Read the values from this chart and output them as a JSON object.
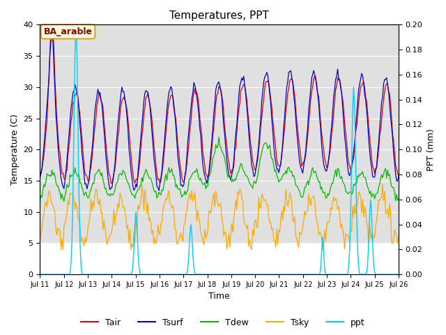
{
  "title": "Temperatures, PPT",
  "xlabel": "Time",
  "ylabel_left": "Temperature (C)",
  "ylabel_right": "PPT (mm)",
  "annotation": "BA_arable",
  "ylim_left": [
    0,
    40
  ],
  "ylim_right": [
    0,
    0.2
  ],
  "yticks_left": [
    0,
    5,
    10,
    15,
    20,
    25,
    30,
    35,
    40
  ],
  "yticks_right": [
    0.0,
    0.02,
    0.04,
    0.06,
    0.08,
    0.1,
    0.12,
    0.14,
    0.16,
    0.18,
    0.2
  ],
  "xtick_labels": [
    "Jul 11",
    "Jul 12",
    "Jul 13",
    "Jul 14",
    "Jul 15",
    "Jul 16",
    "Jul 17",
    "Jul 18",
    "Jul 19",
    "Jul 20",
    "Jul 21",
    "Jul 22",
    "Jul 23",
    "Jul 24",
    "Jul 25",
    "Jul 26"
  ],
  "colors": {
    "Tair": "#dd0000",
    "Tsurf": "#0000cc",
    "Tdew": "#00bb00",
    "Tsky": "#ffaa00",
    "ppt": "#00ccff"
  },
  "legend_labels": [
    "Tair",
    "Tsurf",
    "Tdew",
    "Tsky",
    "ppt"
  ],
  "background_color": "#e0e0e0",
  "figsize": [
    6.4,
    4.8
  ],
  "dpi": 100
}
